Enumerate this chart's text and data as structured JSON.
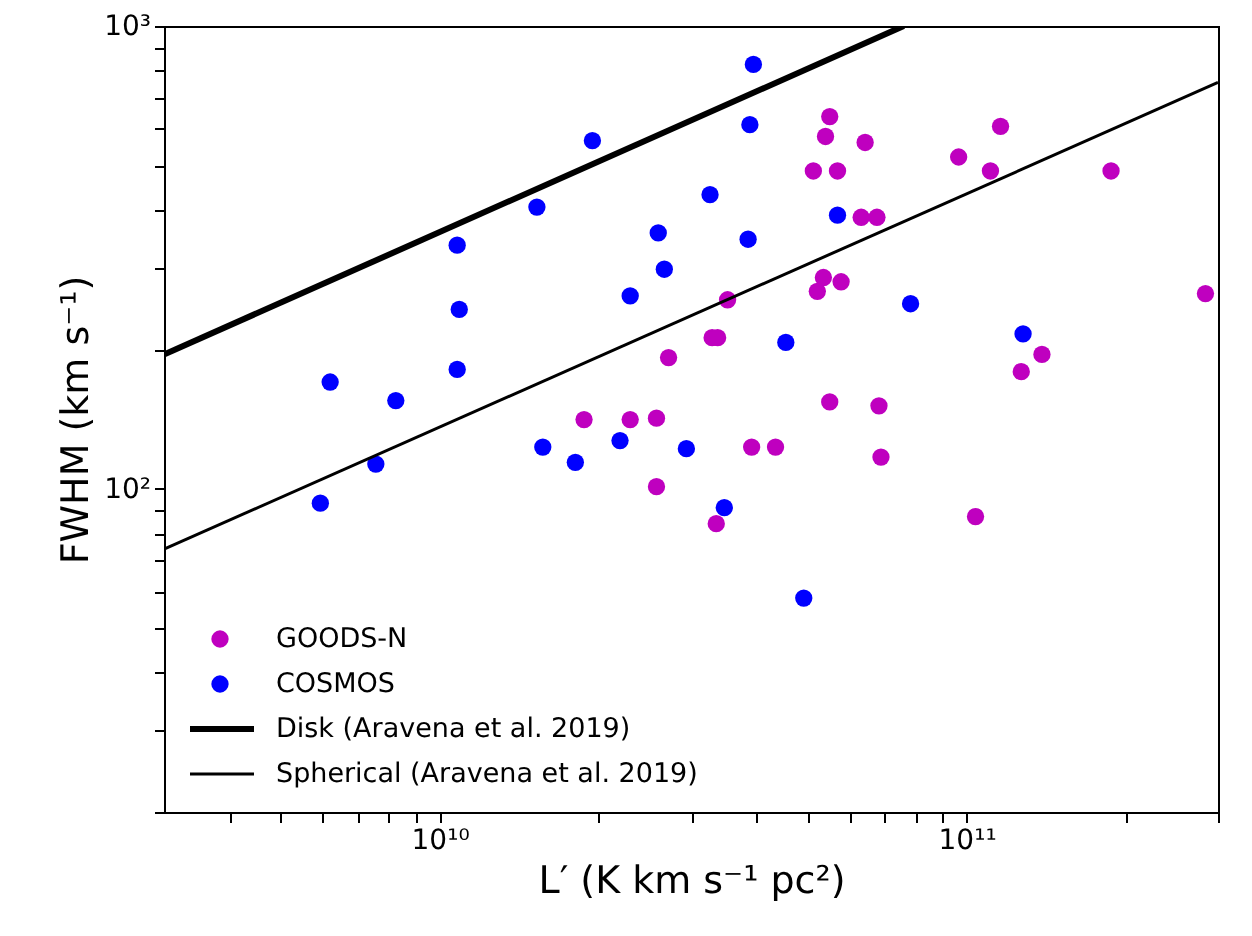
{
  "chart_data": {
    "type": "scatter",
    "xlabel": "L′ (K km s⁻¹ pc²)",
    "ylabel": "FWHM (km s⁻¹)",
    "series": [
      {
        "name": "GOODS-N",
        "color": "#bf00bf",
        "marker": "circle",
        "x": [
          27200000000.0,
          18800000000.0,
          23000000000.0,
          25800000000.0,
          25800000000.0,
          55000000000.0,
          54000000000.0,
          64200000000.0,
          116000000000.0,
          51200000000.0,
          56900000000.0,
          96600000000.0,
          111000000000.0,
          188000000000.0,
          63100000000.0,
          67600000000.0,
          53500000000.0,
          52100000000.0,
          57800000000.0,
          35200000000.0,
          284000000000.0,
          32900000000.0,
          33700000000.0,
          139000000000.0,
          127000000000.0,
          55000000000.0,
          68200000000.0,
          39100000000.0,
          43400000000.0,
          68800000000.0,
          33500000000.0,
          104000000000.0
        ],
        "values": [
          192,
          141,
          141,
          142,
          101,
          637,
          577,
          560,
          607,
          486,
          486,
          521,
          486,
          486,
          386,
          386,
          286,
          267,
          280,
          256,
          264,
          212,
          212,
          195,
          179,
          154,
          151,
          123,
          123,
          117,
          84,
          87
        ]
      },
      {
        "name": "COSMOS",
        "color": "#0000ff",
        "marker": "circle",
        "x": [
          19500000000.0,
          15300000000.0,
          10800000000.0,
          26000000000.0,
          26700000000.0,
          23000000000.0,
          10900000000.0,
          6200000000.0,
          8260000000.0,
          10800000000.0,
          7570000000.0,
          5940000000.0,
          15700000000.0,
          18100000000.0,
          22000000000.0,
          29400000000.0,
          39400000000.0,
          38800000000.0,
          32600000000.0,
          56900000000.0,
          38500000000.0,
          78300000000.0,
          45400000000.0,
          128000000000.0,
          34700000000.0,
          49100000000.0
        ],
        "values": [
          565,
          406,
          336,
          357,
          298,
          261,
          244,
          170,
          155,
          181,
          113,
          93,
          123,
          114,
          127,
          122,
          826,
          612,
          432,
          390,
          346,
          251,
          207,
          216,
          91,
          58
        ]
      },
      {
        "name": "Disk (Aravena et al. 2019)",
        "color": "#000000",
        "type": "line",
        "x": [
          3000000000.0,
          76000000000.0
        ],
        "values": [
          195,
          1000
        ]
      },
      {
        "name": "Spherical (Aravena et al. 2019)",
        "color": "#000000",
        "type": "line",
        "x": [
          3000000000.0,
          300000000000.0
        ],
        "values": [
          74,
          755
        ]
      }
    ],
    "xlim": [
      3000000000.0,
      300000000000.0
    ],
    "ylim": [
      20,
      1000
    ],
    "xticks": [
      {
        "value": 4000000000.0,
        "label": null
      },
      {
        "value": 5000000000.0,
        "label": null
      },
      {
        "value": 6000000000.0,
        "label": null
      },
      {
        "value": 7000000000.0,
        "label": null
      },
      {
        "value": 8000000000.0,
        "label": null
      },
      {
        "value": 9000000000.0,
        "label": null
      },
      {
        "value": 10000000000.0,
        "label": "10¹⁰"
      },
      {
        "value": 20000000000.0,
        "label": null
      },
      {
        "value": 30000000000.0,
        "label": null
      },
      {
        "value": 40000000000.0,
        "label": null
      },
      {
        "value": 50000000000.0,
        "label": null
      },
      {
        "value": 60000000000.0,
        "label": null
      },
      {
        "value": 70000000000.0,
        "label": null
      },
      {
        "value": 80000000000.0,
        "label": null
      },
      {
        "value": 90000000000.0,
        "label": null
      },
      {
        "value": 100000000000.0,
        "label": "10¹¹"
      },
      {
        "value": 200000000000.0,
        "label": null
      },
      {
        "value": 300000000000.0,
        "label": null
      }
    ],
    "yticks": [
      {
        "value": 20,
        "label": null
      },
      {
        "value": 30,
        "label": null
      },
      {
        "value": 40,
        "label": null
      },
      {
        "value": 50,
        "label": null
      },
      {
        "value": 60,
        "label": null
      },
      {
        "value": 70,
        "label": null
      },
      {
        "value": 80,
        "label": null
      },
      {
        "value": 90,
        "label": null
      },
      {
        "value": 100,
        "label": "10²"
      },
      {
        "value": 200,
        "label": null
      },
      {
        "value": 300,
        "label": null
      },
      {
        "value": 400,
        "label": null
      },
      {
        "value": 500,
        "label": null
      },
      {
        "value": 600,
        "label": null
      },
      {
        "value": 700,
        "label": null
      },
      {
        "value": 800,
        "label": null
      },
      {
        "value": 900,
        "label": null
      },
      {
        "value": 1000,
        "label": "10³"
      }
    ],
    "log": "xy",
    "grid": false,
    "legend": "bottom left",
    "line_style": "solid"
  }
}
